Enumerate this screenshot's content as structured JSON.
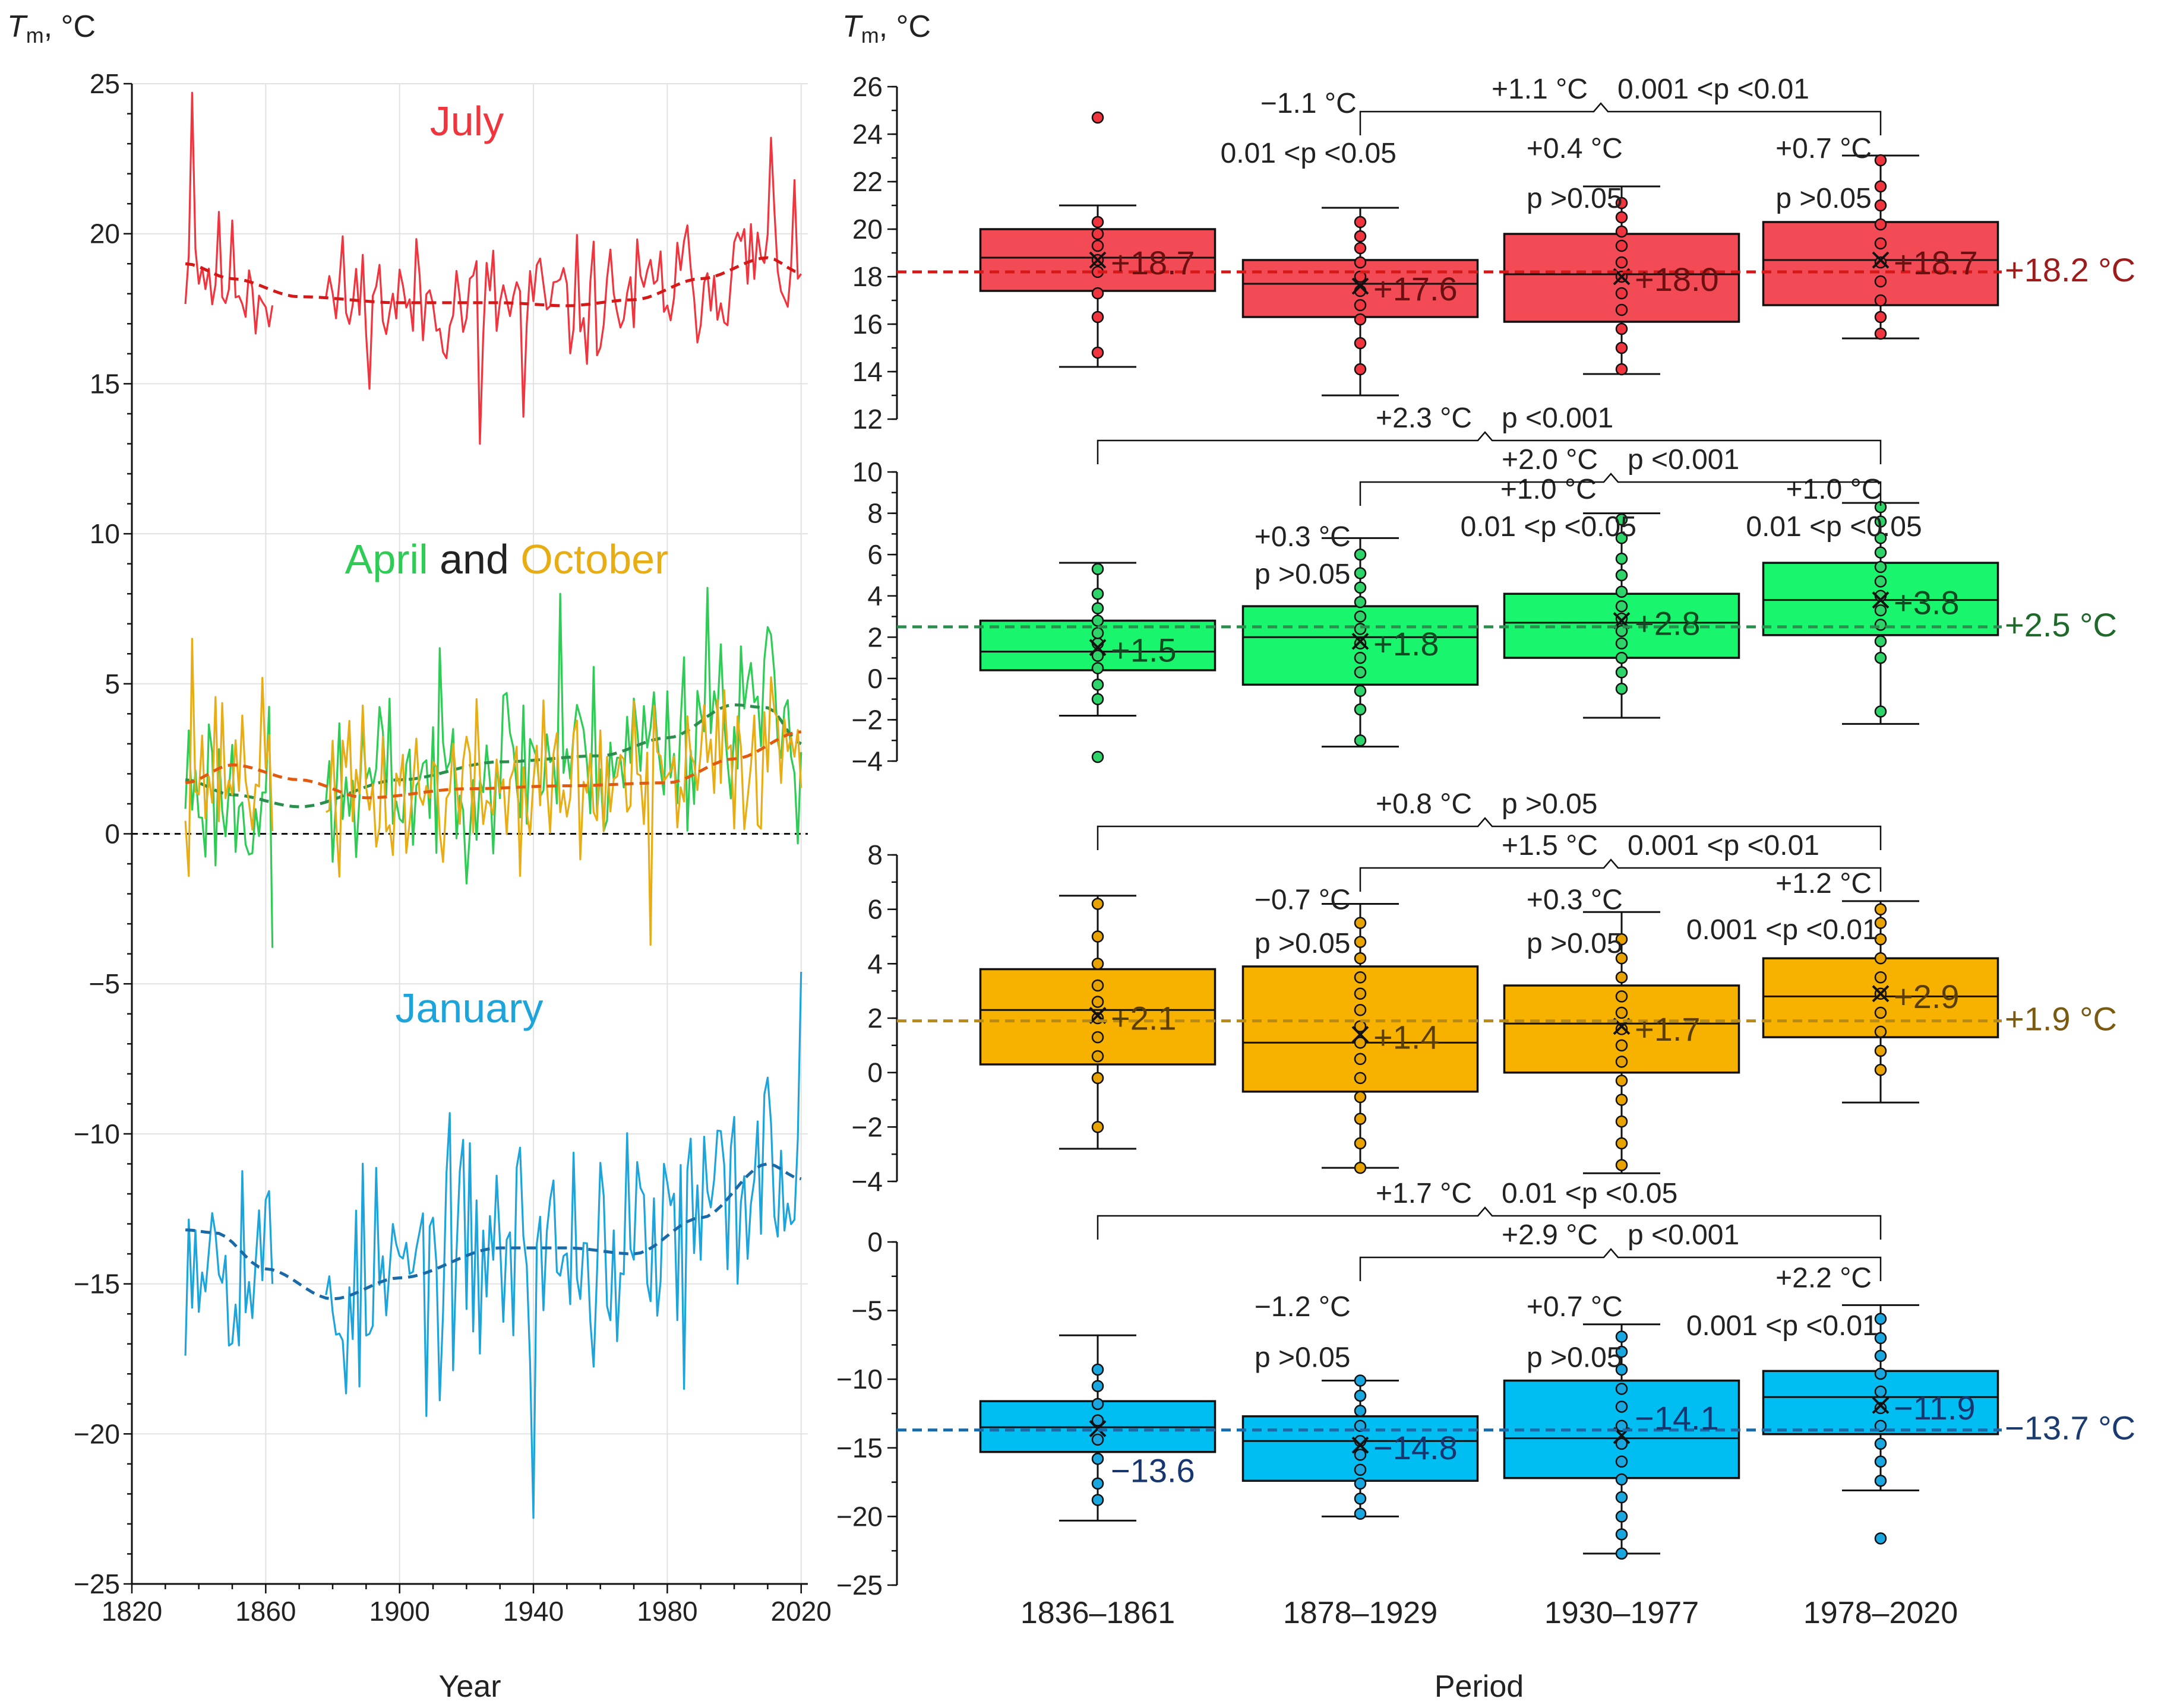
{
  "colors": {
    "july": "#f0353f",
    "april": "#2ecc55",
    "october": "#e8ad14",
    "january": "#1ca4db",
    "july_box": "#f24b55",
    "april_box": "#19f56d",
    "oct_box": "#f7b200",
    "jan_box": "#00bdf2",
    "july_dash": "#d51818",
    "april_dash": "#2a8f4c",
    "oct_dash": "#e05a10",
    "jan_dash": "#1a6aa8",
    "july_ref": "#9c1b1b",
    "april_ref": "#1f6a2a",
    "oct_ref": "#7a5a10",
    "jan_ref": "#1a3a70"
  },
  "chart_data": [
    {
      "type": "line",
      "id": "left_timeseries",
      "ylabel_main": "T",
      "ylabel_sub": "m",
      "ylabel_unit": ", °C",
      "xlabel": "Year",
      "xlim": [
        1820,
        2022
      ],
      "ylim": [
        -25,
        25
      ],
      "x_ticks": [
        "1820",
        "1860",
        "1900",
        "1940",
        "1980",
        "2020"
      ],
      "x_tick_values": [
        1820,
        1860,
        1900,
        1940,
        1980,
        2020
      ],
      "y_ticks": [
        "25",
        "20",
        "15",
        "10",
        "5",
        "0",
        "−5",
        "−10",
        "−15",
        "−20",
        "−25"
      ],
      "y_tick_values": [
        25,
        20,
        15,
        10,
        5,
        0,
        -5,
        -10,
        -15,
        -20,
        -25
      ],
      "zero_line": 0,
      "gap_years": [
        1862,
        1877
      ],
      "labels": {
        "july": "July",
        "april": "April",
        "and": "and",
        "october": "October",
        "january": "January"
      },
      "series": [
        {
          "name": "July",
          "base": 18.2,
          "amp": 1.7,
          "seed": 11,
          "trend": [
            [
              1836,
              19.0
            ],
            [
              1850,
              18.5
            ],
            [
              1870,
              17.9
            ],
            [
              1900,
              17.7
            ],
            [
              1930,
              17.7
            ],
            [
              1950,
              17.6
            ],
            [
              1970,
              17.8
            ],
            [
              1990,
              18.5
            ],
            [
              2010,
              19.2
            ],
            [
              2020,
              18.7
            ]
          ],
          "fixed": [
            [
              1838,
              24.7
            ],
            [
              1839,
              19.5
            ],
            [
              1924,
              13.0
            ],
            [
              1937,
              13.9
            ],
            [
              2011,
              23.2
            ]
          ]
        },
        {
          "name": "April",
          "base": 2.0,
          "amp": 2.4,
          "seed": 23,
          "trend": [
            [
              1836,
              1.8
            ],
            [
              1850,
              1.3
            ],
            [
              1870,
              0.9
            ],
            [
              1900,
              1.8
            ],
            [
              1930,
              2.4
            ],
            [
              1960,
              2.6
            ],
            [
              1980,
              3.2
            ],
            [
              2000,
              4.3
            ],
            [
              2010,
              4.2
            ],
            [
              2020,
              3.0
            ]
          ],
          "fixed": [
            [
              1862,
              -3.8
            ],
            [
              1948,
              8.0
            ],
            [
              1992,
              8.2
            ]
          ]
        },
        {
          "name": "October",
          "base": 1.9,
          "amp": 2.2,
          "seed": 37,
          "trend": [
            [
              1836,
              1.7
            ],
            [
              1850,
              2.3
            ],
            [
              1870,
              1.8
            ],
            [
              1890,
              1.2
            ],
            [
              1920,
              1.5
            ],
            [
              1950,
              1.6
            ],
            [
              1980,
              1.7
            ],
            [
              2000,
              2.5
            ],
            [
              2020,
              3.4
            ]
          ],
          "fixed": [
            [
              1838,
              6.5
            ],
            [
              1975,
              -3.7
            ]
          ]
        },
        {
          "name": "January",
          "base": -13.7,
          "amp": 3.2,
          "seed": 53,
          "trend": [
            [
              1836,
              -13.2
            ],
            [
              1845,
              -13.3
            ],
            [
              1860,
              -14.5
            ],
            [
              1880,
              -15.5
            ],
            [
              1900,
              -14.8
            ],
            [
              1930,
              -13.8
            ],
            [
              1950,
              -13.8
            ],
            [
              1970,
              -14.0
            ],
            [
              1990,
              -12.8
            ],
            [
              2010,
              -11.0
            ],
            [
              2020,
              -11.5
            ]
          ],
          "fixed": [
            [
              1940,
              -22.8
            ],
            [
              1985,
              -18.5
            ],
            [
              2020,
              -4.6
            ]
          ]
        }
      ]
    },
    {
      "type": "box",
      "id": "right_boxplots",
      "ylabel_main": "T",
      "ylabel_sub": "m",
      "ylabel_unit": ", °C",
      "xlabel": "Period",
      "categories": [
        "1836–1861",
        "1878–1929",
        "1930–1977",
        "1978–2020"
      ],
      "panels": [
        {
          "name": "July",
          "ylim": [
            12,
            26
          ],
          "y_ticks": [
            "12",
            "14",
            "16",
            "18",
            "20",
            "22",
            "24",
            "26"
          ],
          "y_tick_values": [
            12,
            14,
            16,
            18,
            20,
            22,
            24,
            26
          ],
          "overall_mean": 18.2,
          "overall_label": "+18.2 °C",
          "boxes": [
            {
              "q1": 17.4,
              "median": 18.8,
              "q3": 20.0,
              "wlo": 14.2,
              "whi": 21.0,
              "mean": 18.7,
              "label": "+18.7",
              "points": [
                14.8,
                16.3,
                17.3,
                18.2,
                18.7,
                19.3,
                19.8,
                20.3,
                24.7
              ]
            },
            {
              "q1": 16.3,
              "median": 17.7,
              "q3": 18.7,
              "wlo": 13.0,
              "whi": 20.9,
              "mean": 17.6,
              "label": "+17.6",
              "points": [
                14.1,
                15.2,
                16.2,
                16.8,
                17.4,
                18.0,
                18.6,
                19.2,
                19.7,
                20.3
              ]
            },
            {
              "q1": 16.1,
              "median": 18.1,
              "q3": 19.8,
              "wlo": 13.9,
              "whi": 21.8,
              "mean": 18.0,
              "label": "+18.0",
              "points": [
                14.1,
                15.0,
                15.8,
                16.6,
                17.3,
                18.0,
                18.6,
                19.3,
                19.9,
                20.5,
                21.1
              ]
            },
            {
              "q1": 16.8,
              "median": 18.7,
              "q3": 20.3,
              "wlo": 15.4,
              "whi": 23.1,
              "mean": 18.7,
              "label": "+18.7",
              "points": [
                15.6,
                16.3,
                17.0,
                17.8,
                18.6,
                19.4,
                20.2,
                21.0,
                21.8,
                22.9
              ]
            }
          ],
          "annotations": [
            {
              "text": "−1.1 °C",
              "col": 0.78
            },
            {
              "text": "0.01 <p <0.05",
              "col": 0.78
            },
            {
              "text": "+0.4 °C",
              "col": 1.82
            },
            {
              "text": "p >0.05",
              "col": 1.82
            },
            {
              "text": "+0.7 °C",
              "col": 2.78
            },
            {
              "text": "p >0.05",
              "col": 2.78
            }
          ],
          "brackets": [
            {
              "from": 1,
              "to": 3,
              "diff": "+1.1 °C",
              "p": "0.001 <p <0.01"
            }
          ]
        },
        {
          "name": "April",
          "ylim": [
            -4,
            10
          ],
          "y_ticks": [
            "−4",
            "−2",
            "0",
            "2",
            "4",
            "6",
            "8",
            "10"
          ],
          "y_tick_values": [
            -4,
            -2,
            0,
            2,
            4,
            6,
            8,
            10
          ],
          "overall_mean": 2.5,
          "overall_label": "+2.5 °C",
          "boxes": [
            {
              "q1": 0.4,
              "median": 1.3,
              "q3": 2.8,
              "wlo": -1.8,
              "whi": 5.6,
              "mean": 1.5,
              "label": "+1.5",
              "points": [
                -3.8,
                -1.0,
                -0.3,
                0.5,
                1.1,
                1.7,
                2.2,
                2.8,
                3.4,
                4.1,
                5.3
              ]
            },
            {
              "q1": -0.3,
              "median": 2.0,
              "q3": 3.5,
              "wlo": -3.3,
              "whi": 6.8,
              "mean": 1.8,
              "label": "+1.8",
              "points": [
                -3.0,
                -1.5,
                -0.6,
                0.3,
                1.0,
                1.7,
                2.4,
                3.0,
                3.7,
                4.4,
                5.1,
                6.0
              ]
            },
            {
              "q1": 1.0,
              "median": 2.7,
              "q3": 4.1,
              "wlo": -1.9,
              "whi": 8.0,
              "mean": 2.8,
              "label": "+2.8",
              "points": [
                -0.5,
                0.3,
                1.0,
                1.7,
                2.3,
                2.9,
                3.5,
                4.2,
                5.0,
                5.8,
                6.8,
                7.7
              ]
            },
            {
              "q1": 2.1,
              "median": 3.8,
              "q3": 5.6,
              "wlo": -2.2,
              "whi": 8.5,
              "mean": 3.8,
              "label": "+3.8",
              "points": [
                -1.6,
                1.0,
                1.8,
                2.6,
                3.3,
                4.0,
                4.7,
                5.4,
                6.1,
                6.8,
                7.6,
                8.3
              ]
            }
          ],
          "annotations": [
            {
              "text": "+0.3 °C",
              "col": 0.78
            },
            {
              "text": "p >0.05",
              "col": 0.78
            },
            {
              "text": "+1.0 °C",
              "col": 1.72
            },
            {
              "text": "0.01 <p <0.05",
              "col": 1.72
            },
            {
              "text": "+1.0 °C",
              "col": 2.82
            },
            {
              "text": "0.01 <p <0.05",
              "col": 2.82
            }
          ],
          "brackets": [
            {
              "from": 0,
              "to": 3,
              "diff": "+2.3 °C",
              "p": "p <0.001"
            },
            {
              "from": 1,
              "to": 3,
              "diff": "+2.0 °C",
              "p": "p <0.001"
            }
          ]
        },
        {
          "name": "October",
          "ylim": [
            -4,
            8
          ],
          "y_ticks": [
            "−4",
            "−2",
            "0",
            "2",
            "4",
            "6",
            "8"
          ],
          "y_tick_values": [
            -4,
            -2,
            0,
            2,
            4,
            6,
            8
          ],
          "overall_mean": 1.9,
          "overall_label": "+1.9 °C",
          "boxes": [
            {
              "q1": 0.3,
              "median": 2.3,
              "q3": 3.8,
              "wlo": -2.8,
              "whi": 6.5,
              "mean": 2.1,
              "label": "+2.1",
              "points": [
                -2.0,
                -0.2,
                0.6,
                1.3,
                2.0,
                2.6,
                3.2,
                4.0,
                5.0,
                6.2
              ]
            },
            {
              "q1": -0.7,
              "median": 1.1,
              "q3": 3.9,
              "wlo": -3.5,
              "whi": 6.2,
              "mean": 1.4,
              "label": "+1.4",
              "points": [
                -3.5,
                -2.6,
                -1.7,
                -0.9,
                -0.2,
                0.5,
                1.1,
                1.7,
                2.3,
                2.9,
                3.5,
                4.2,
                4.8,
                5.5
              ]
            },
            {
              "q1": 0.0,
              "median": 1.8,
              "q3": 3.2,
              "wlo": -3.7,
              "whi": 5.9,
              "mean": 1.7,
              "label": "+1.7",
              "points": [
                -3.4,
                -2.6,
                -1.8,
                -1.0,
                -0.3,
                0.4,
                1.0,
                1.6,
                2.2,
                2.8,
                3.5,
                4.2,
                4.9
              ]
            },
            {
              "q1": 1.3,
              "median": 2.8,
              "q3": 4.2,
              "wlo": -1.1,
              "whi": 6.3,
              "mean": 2.9,
              "label": "+2.9",
              "points": [
                0.1,
                0.8,
                1.5,
                2.2,
                2.9,
                3.5,
                4.2,
                4.9,
                5.5,
                6.0
              ]
            }
          ],
          "annotations": [
            {
              "text": "−0.7 °C",
              "col": 0.78
            },
            {
              "text": "p >0.05",
              "col": 0.78
            },
            {
              "text": "+0.3 °C",
              "col": 1.82
            },
            {
              "text": "p >0.05",
              "col": 1.82
            },
            {
              "text": "+1.2 °C",
              "col": 2.78
            },
            {
              "text": "0.001 <p <0.01",
              "col": 2.62
            }
          ],
          "brackets": [
            {
              "from": 0,
              "to": 3,
              "diff": "+0.8 °C",
              "p": "p >0.05"
            },
            {
              "from": 1,
              "to": 3,
              "diff": "+1.5 °C",
              "p": "0.001 <p <0.01"
            }
          ]
        },
        {
          "name": "January",
          "ylim": [
            -25,
            0
          ],
          "y_ticks": [
            "0",
            "−5",
            "−10",
            "−15",
            "−20",
            "−25"
          ],
          "y_tick_values": [
            0,
            -5,
            -10,
            -15,
            -20,
            -25
          ],
          "overall_mean": -13.7,
          "overall_label": "−13.7 °C",
          "boxes": [
            {
              "q1": -15.3,
              "median": -13.5,
              "q3": -11.6,
              "wlo": -20.3,
              "whi": -6.8,
              "mean": -13.6,
              "label": "−13.6",
              "points": [
                -18.8,
                -17.6,
                -15.8,
                -14.4,
                -13.0,
                -11.8,
                -10.5,
                -9.3
              ]
            },
            {
              "q1": -17.4,
              "median": -14.5,
              "q3": -12.7,
              "wlo": -20.0,
              "whi": -10.1,
              "mean": -14.8,
              "label": "−14.8",
              "points": [
                -19.8,
                -18.7,
                -17.6,
                -16.6,
                -15.5,
                -14.5,
                -13.4,
                -12.3,
                -11.2,
                -10.1
              ]
            },
            {
              "q1": -17.2,
              "median": -14.3,
              "q3": -10.1,
              "wlo": -22.7,
              "whi": -6.0,
              "mean": -14.1,
              "label": "−14.1",
              "points": [
                -22.7,
                -21.3,
                -20.0,
                -18.6,
                -17.3,
                -16.0,
                -14.7,
                -13.4,
                -12.0,
                -10.7,
                -9.3,
                -8.0,
                -6.9
              ]
            },
            {
              "q1": -14.0,
              "median": -11.3,
              "q3": -9.4,
              "wlo": -18.1,
              "whi": -4.6,
              "mean": -11.9,
              "label": "−11.9",
              "points": [
                -21.6,
                -17.4,
                -16.0,
                -14.7,
                -13.4,
                -12.1,
                -10.9,
                -9.6,
                -8.3,
                -7.0,
                -5.6
              ]
            }
          ],
          "annotations": [
            {
              "text": "−1.2 °C",
              "col": 0.78
            },
            {
              "text": "p >0.05",
              "col": 0.78
            },
            {
              "text": "+0.7 °C",
              "col": 1.82
            },
            {
              "text": "p >0.05",
              "col": 1.82
            },
            {
              "text": "+2.2 °C",
              "col": 2.78
            },
            {
              "text": "0.001 <p <0.01",
              "col": 2.62
            }
          ],
          "brackets": [
            {
              "from": 0,
              "to": 3,
              "diff": "+1.7 °C",
              "p": "0.01 <p <0.05"
            },
            {
              "from": 1,
              "to": 3,
              "diff": "+2.9 °C",
              "p": "p <0.001"
            }
          ]
        }
      ]
    }
  ]
}
